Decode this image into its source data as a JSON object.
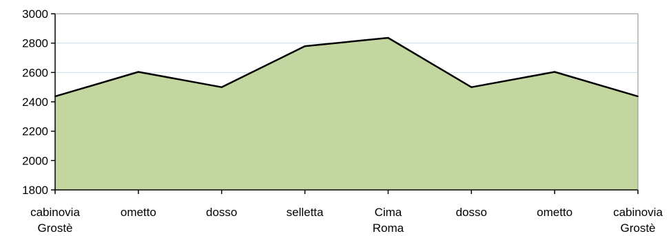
{
  "chart_data": {
    "type": "area",
    "categories": [
      [
        "cabinovia",
        "Grostè"
      ],
      [
        "ometto"
      ],
      [
        "dosso"
      ],
      [
        "selletta"
      ],
      [
        "Cima",
        "Roma"
      ],
      [
        "dosso"
      ],
      [
        "ometto"
      ],
      [
        "cabinovia",
        "Grostè"
      ]
    ],
    "values": [
      2437,
      2604,
      2500,
      2779,
      2836,
      2500,
      2604,
      2437
    ],
    "ylim": [
      1800,
      3000
    ],
    "yticks": [
      1800,
      2000,
      2200,
      2400,
      2600,
      2800,
      3000
    ],
    "grid": true,
    "legend": "none",
    "colors": {
      "fill": "#c4d6a0",
      "line": "#000000",
      "grid": "#c9dbe6",
      "axis": "#000000"
    }
  }
}
